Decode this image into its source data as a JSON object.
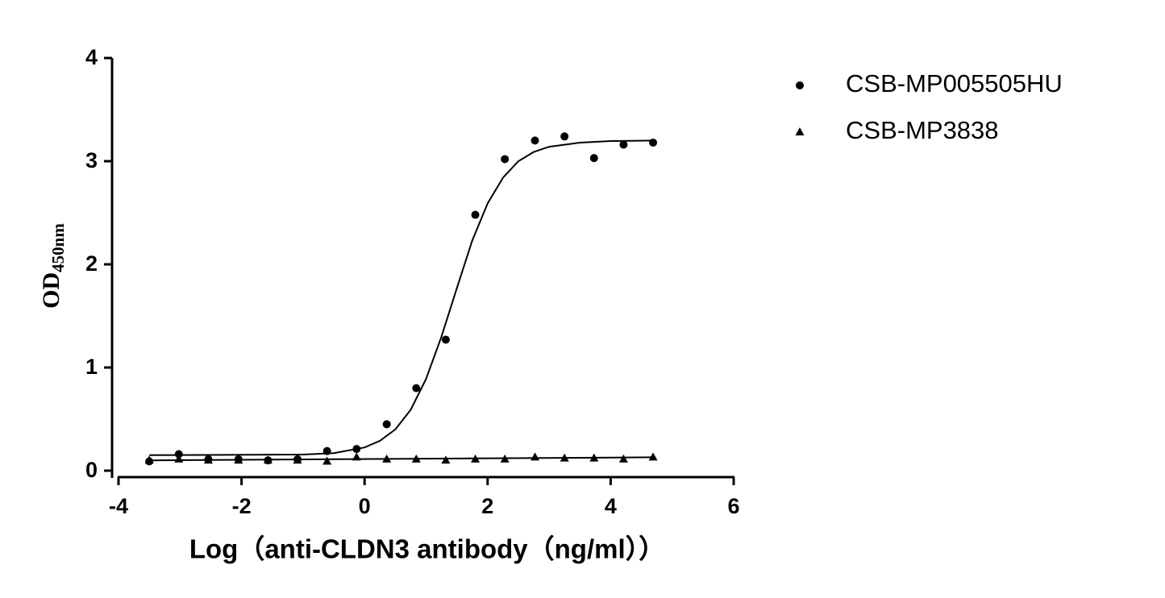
{
  "chart_data": {
    "type": "scatter",
    "xlabel": "Log（anti-CLDN3 antibody（ng/ml））",
    "ylabel": "OD",
    "ylabel_subscript": "450nm",
    "xlim": [
      -4,
      6
    ],
    "xticks": [
      -4,
      -2,
      0,
      2,
      4,
      6
    ],
    "ylim": [
      0,
      4
    ],
    "yticks": [
      0,
      1,
      2,
      3,
      4
    ],
    "legend": "top-right",
    "series": [
      {
        "name": "CSB-MP005505HU",
        "color": "#000000",
        "marker": "circle",
        "x": [
          -3.5,
          -3.02,
          -2.54,
          -2.05,
          -1.57,
          -1.09,
          -0.61,
          -0.13,
          0.36,
          0.84,
          1.32,
          1.8,
          2.28,
          2.77,
          3.25,
          3.73,
          4.21,
          4.69
        ],
        "values": [
          0.09,
          0.16,
          0.11,
          0.11,
          0.1,
          0.11,
          0.19,
          0.21,
          0.45,
          0.8,
          1.27,
          2.48,
          3.02,
          3.2,
          3.24,
          3.03,
          3.16,
          3.18
        ],
        "fit": {
          "x": [
            -3.5,
            -1,
            -0.5,
            0,
            0.25,
            0.5,
            0.75,
            1,
            1.25,
            1.5,
            1.75,
            2,
            2.25,
            2.5,
            2.75,
            3,
            3.5,
            4,
            4.7
          ],
          "values": [
            0.15,
            0.156,
            0.17,
            0.225,
            0.29,
            0.4,
            0.59,
            0.89,
            1.3,
            1.77,
            2.23,
            2.59,
            2.84,
            3.0,
            3.09,
            3.14,
            3.18,
            3.195,
            3.2
          ]
        }
      },
      {
        "name": "CSB-MP3838",
        "color": "#000000",
        "marker": "triangle",
        "x": [
          -3.5,
          -3.02,
          -2.54,
          -2.05,
          -1.57,
          -1.09,
          -0.61,
          -0.13,
          0.36,
          0.84,
          1.32,
          1.8,
          2.28,
          2.77,
          3.25,
          3.73,
          4.21,
          4.69
        ],
        "values": [
          0.1,
          0.11,
          0.1,
          0.1,
          0.1,
          0.1,
          0.09,
          0.13,
          0.11,
          0.11,
          0.1,
          0.11,
          0.11,
          0.13,
          0.12,
          0.12,
          0.11,
          0.13
        ],
        "fit": {
          "x": [
            -3.5,
            4.7
          ],
          "values": [
            0.1,
            0.13
          ]
        }
      }
    ]
  }
}
